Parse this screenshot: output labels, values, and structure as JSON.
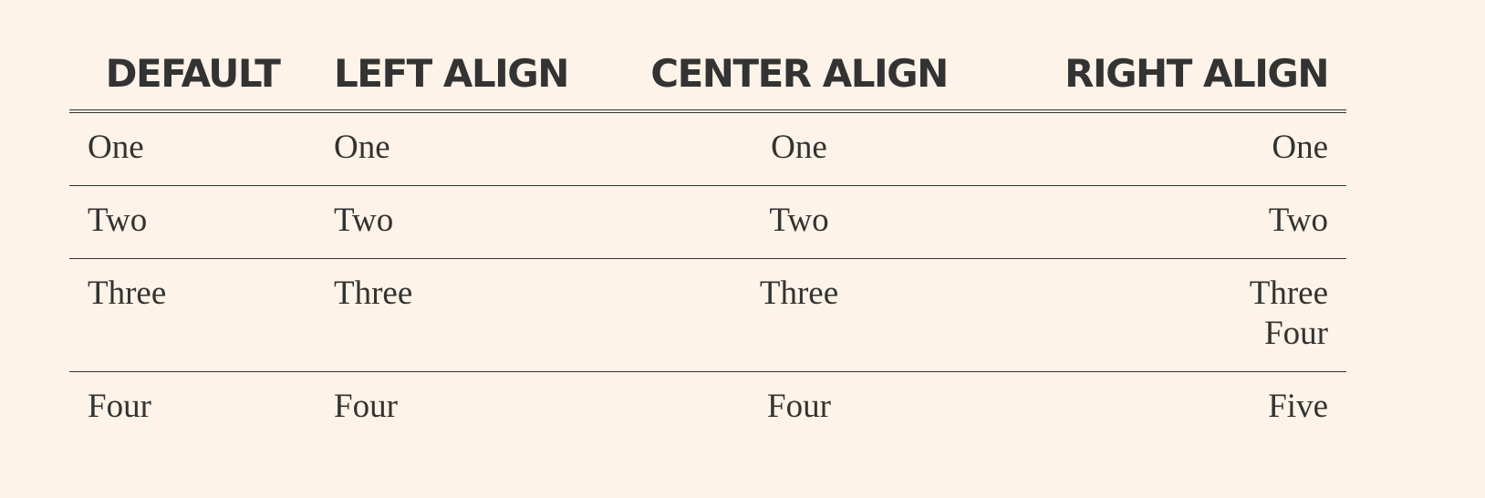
{
  "table": {
    "headers": [
      "DEFAULT",
      "LEFT ALIGN",
      "CENTER ALIGN",
      "RIGHT ALIGN"
    ],
    "rows": [
      [
        "One",
        "One",
        "One",
        "One"
      ],
      [
        "Two",
        "Two",
        "Two",
        "Two"
      ],
      [
        "Three",
        "Three",
        "Three",
        [
          "Three",
          "Four"
        ]
      ],
      [
        "Four",
        "Four",
        "Four",
        "Five"
      ]
    ]
  }
}
